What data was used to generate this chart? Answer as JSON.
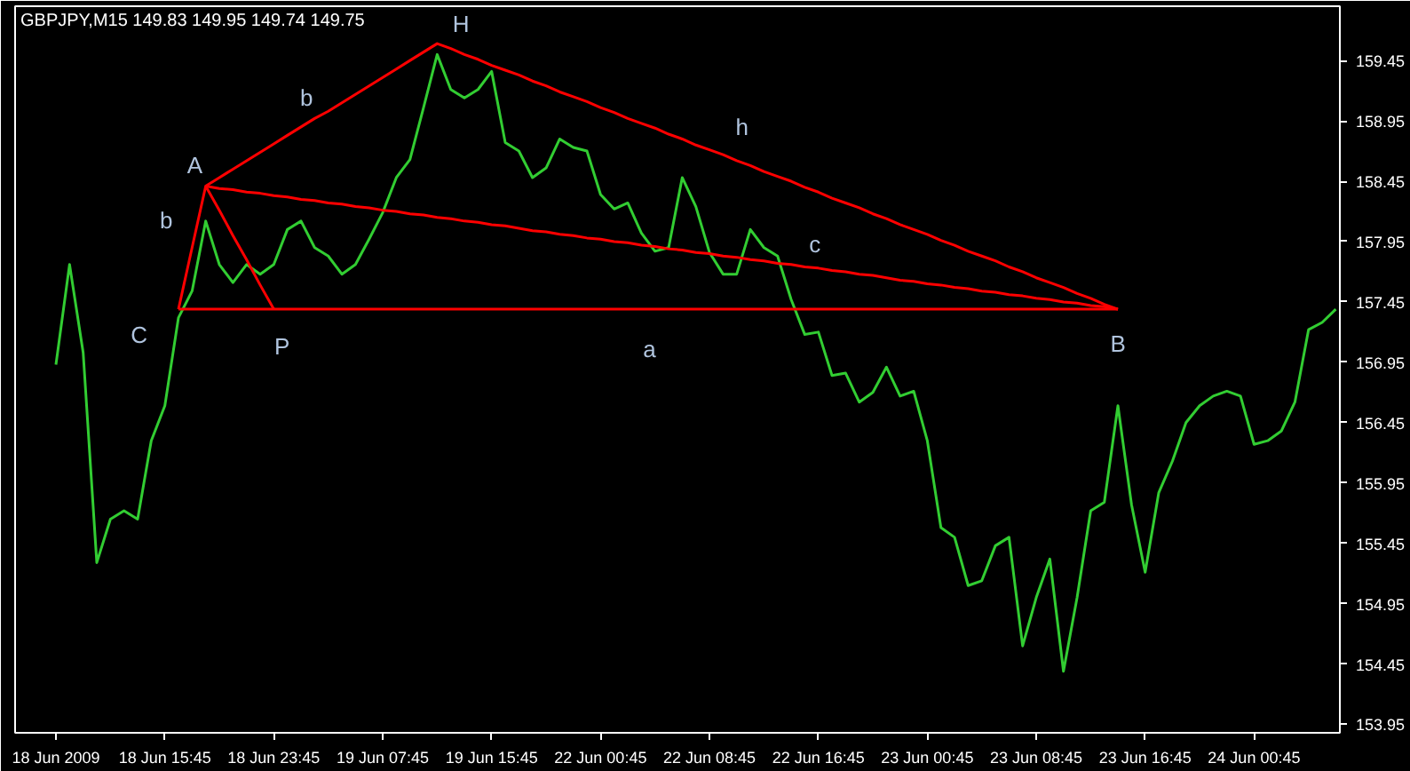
{
  "chart_data": {
    "type": "line",
    "title": "GBPJPY,M15  149.83 149.95 149.74 149.75",
    "categories": [
      "18 Jun 2009",
      null,
      null,
      null,
      null,
      null,
      null,
      null,
      "18 Jun 15:45",
      null,
      null,
      null,
      null,
      null,
      null,
      null,
      "18 Jun 23:45",
      null,
      null,
      null,
      null,
      null,
      null,
      null,
      "19 Jun 07:45",
      null,
      null,
      null,
      null,
      null,
      null,
      null,
      "19 Jun 15:45",
      null,
      null,
      null,
      null,
      null,
      null,
      null,
      "22 Jun 00:45",
      null,
      null,
      null,
      null,
      null,
      null,
      null,
      "22 Jun 08:45",
      null,
      null,
      null,
      null,
      null,
      null,
      null,
      "22 Jun 16:45",
      null,
      null,
      null,
      null,
      null,
      null,
      null,
      "23 Jun 00:45",
      null,
      null,
      null,
      null,
      null,
      null,
      null,
      "23 Jun 08:45",
      null,
      null,
      null,
      null,
      null,
      null,
      null,
      "23 Jun 16:45",
      null,
      null,
      null,
      null,
      null,
      null,
      null,
      "24 Jun 00:45",
      null,
      null,
      null,
      null,
      null,
      null
    ],
    "ylim": [
      153.88,
      159.9
    ],
    "yticks": [
      153.95,
      154.45,
      154.95,
      155.45,
      155.95,
      156.45,
      156.95,
      157.45,
      157.95,
      158.45,
      158.95,
      159.45
    ],
    "series": [
      {
        "color": "#32cd32",
        "values": [
          156.93,
          157.76,
          157.03,
          155.29,
          155.65,
          155.72,
          155.65,
          156.3,
          156.59,
          157.32,
          157.54,
          158.12,
          157.76,
          157.61,
          157.76,
          157.68,
          157.76,
          158.05,
          158.12,
          157.9,
          157.83,
          157.68,
          157.76,
          157.97,
          158.19,
          158.48,
          158.63,
          159.06,
          159.5,
          159.21,
          159.14,
          159.21,
          159.36,
          158.77,
          158.7,
          158.48,
          158.56,
          158.8,
          158.73,
          158.7,
          158.34,
          158.22,
          158.27,
          158.02,
          157.87,
          157.9,
          158.48,
          158.24,
          157.86,
          157.68,
          157.68,
          158.05,
          157.9,
          157.83,
          157.47,
          157.18,
          157.2,
          156.84,
          156.86,
          156.62,
          156.7,
          156.91,
          156.67,
          156.71,
          156.3,
          155.58,
          155.5,
          155.1,
          155.14,
          155.43,
          155.5,
          154.6,
          155.0,
          155.32,
          154.39,
          155.0,
          155.72,
          155.79,
          156.59,
          155.77,
          155.21,
          155.87,
          156.13,
          156.45,
          156.59,
          156.67,
          156.71,
          156.67,
          156.27,
          156.3,
          156.38,
          156.62,
          157.22,
          157.28,
          157.39
        ]
      },
      {
        "color": "#ff0000",
        "values": [
          null,
          null,
          null,
          null,
          null,
          null,
          null,
          null,
          null,
          null,
          null,
          158.41,
          158.48,
          158.55,
          158.62,
          158.69,
          158.76,
          158.83,
          158.9,
          158.97,
          159.03,
          159.1,
          159.17,
          159.24,
          159.31,
          159.38,
          159.45,
          159.52,
          159.59,
          159.55,
          159.5,
          159.46,
          159.41,
          159.37,
          159.33,
          159.28,
          159.24,
          159.19,
          159.15,
          159.11,
          159.06,
          159.02,
          158.97,
          158.93,
          158.89,
          158.84,
          158.8,
          158.75,
          158.71,
          158.67,
          158.62,
          158.58,
          158.53,
          158.49,
          158.45,
          158.4,
          158.36,
          158.31,
          158.27,
          158.23,
          158.18,
          158.14,
          158.09,
          158.05,
          158.01,
          157.96,
          157.92,
          157.87,
          157.83,
          157.79,
          157.74,
          157.7,
          157.65,
          157.61,
          157.57,
          157.52,
          157.48,
          157.43,
          157.39,
          null,
          null,
          null,
          null,
          null,
          null,
          null,
          null,
          null,
          null,
          null,
          null,
          null,
          null,
          null,
          null
        ]
      },
      {
        "color": "#ff0000",
        "values": [
          null,
          null,
          null,
          null,
          null,
          null,
          null,
          null,
          null,
          null,
          null,
          158.41,
          158.39,
          158.38,
          158.36,
          158.35,
          158.33,
          158.32,
          158.3,
          158.29,
          158.27,
          158.26,
          158.24,
          158.23,
          158.21,
          158.2,
          158.18,
          158.17,
          158.15,
          158.14,
          158.12,
          158.11,
          158.09,
          158.08,
          158.06,
          158.04,
          158.03,
          158.01,
          158.0,
          157.98,
          157.97,
          157.95,
          157.94,
          157.92,
          157.91,
          157.89,
          157.88,
          157.86,
          157.85,
          157.83,
          157.82,
          157.8,
          157.79,
          157.77,
          157.76,
          157.74,
          157.73,
          157.71,
          157.7,
          157.68,
          157.67,
          157.65,
          157.63,
          157.62,
          157.6,
          157.59,
          157.57,
          157.56,
          157.54,
          157.53,
          157.51,
          157.5,
          157.48,
          157.47,
          157.45,
          157.44,
          157.42,
          157.41,
          157.39,
          null,
          null,
          null,
          null,
          null,
          null,
          null,
          null,
          null,
          null,
          null,
          null,
          null,
          null,
          null,
          null
        ]
      },
      {
        "color": "#ff0000",
        "values": [
          null,
          null,
          null,
          null,
          null,
          null,
          null,
          null,
          null,
          157.39,
          157.9,
          158.41,
          158.21,
          158.0,
          157.8,
          157.59,
          157.39,
          null,
          null,
          null,
          null,
          null,
          null,
          null,
          null,
          null,
          null,
          null,
          null,
          null,
          null,
          null,
          null,
          null,
          null,
          null,
          null,
          null,
          null,
          null,
          null,
          null,
          null,
          null,
          null,
          null,
          null,
          null,
          null,
          null,
          null,
          null,
          null,
          null,
          null,
          null,
          null,
          null,
          null,
          null,
          null,
          null,
          null,
          null,
          null,
          null,
          null,
          null,
          null,
          null,
          null,
          null,
          null,
          null,
          null,
          null,
          null,
          null,
          null,
          null,
          null,
          null,
          null,
          null,
          null,
          null,
          null,
          null,
          null,
          null,
          null,
          null,
          null,
          null,
          null
        ]
      },
      {
        "color": "#ff0000",
        "values": [
          null,
          null,
          null,
          null,
          null,
          null,
          null,
          null,
          null,
          157.39,
          157.39,
          157.39,
          157.39,
          157.39,
          157.39,
          157.39,
          157.39,
          157.39,
          157.39,
          157.39,
          157.39,
          157.39,
          157.39,
          157.39,
          157.39,
          157.39,
          157.39,
          157.39,
          157.39,
          157.39,
          157.39,
          157.39,
          157.39,
          157.39,
          157.39,
          157.39,
          157.39,
          157.39,
          157.39,
          157.39,
          157.39,
          157.39,
          157.39,
          157.39,
          157.39,
          157.39,
          157.39,
          157.39,
          157.39,
          157.39,
          157.39,
          157.39,
          157.39,
          157.39,
          157.39,
          157.39,
          157.39,
          157.39,
          157.39,
          157.39,
          157.39,
          157.39,
          157.39,
          157.39,
          157.39,
          157.39,
          157.39,
          157.39,
          157.39,
          157.39,
          157.39,
          157.39,
          157.39,
          157.39,
          157.39,
          157.39,
          157.39,
          157.39,
          157.39,
          null,
          null,
          null,
          null,
          null,
          null,
          null,
          null,
          null,
          null,
          null,
          null,
          null,
          null,
          null,
          null
        ]
      }
    ],
    "annotations": [
      "A",
      "b",
      "C",
      "P",
      "b",
      "H",
      "h",
      "c",
      "a",
      "B"
    ]
  }
}
